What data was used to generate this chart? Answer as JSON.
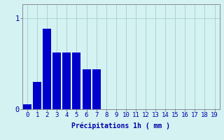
{
  "categories": [
    0,
    1,
    2,
    3,
    4,
    5,
    6,
    7,
    8,
    9,
    10,
    11,
    12,
    13,
    14,
    15,
    16,
    17,
    18,
    19
  ],
  "values": [
    0.055,
    0.3,
    0.88,
    0.62,
    0.62,
    0.62,
    0.44,
    0.44,
    0.0,
    0.0,
    0.0,
    0.0,
    0.0,
    0.0,
    0.0,
    0.0,
    0.0,
    0.0,
    0.0,
    0.0
  ],
  "bar_color": "#0000cc",
  "background_color": "#d4f2f2",
  "grid_color": "#aacccc",
  "axis_color": "#0000aa",
  "xlabel": "Précipitations 1h ( mm )",
  "ylim": [
    0,
    1.15
  ],
  "xlim": [
    -0.5,
    19.5
  ],
  "yticks": [
    0,
    1
  ],
  "xlabel_fontsize": 7,
  "tick_fontsize": 6.5
}
